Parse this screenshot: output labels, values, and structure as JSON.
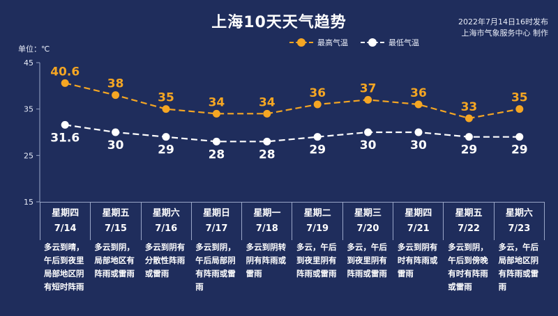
{
  "header": {
    "title": "上海10天天气趋势",
    "publish_time": "2022年7月14日16时发布",
    "publisher": "上海市气象服务中心 制作",
    "unit_label": "单位：℃"
  },
  "colors": {
    "background": "#1f2d5c",
    "high": "#f5a623",
    "low": "#ffffff"
  },
  "chart_data": {
    "type": "line",
    "title": "上海10天天气趋势",
    "ylabel": "单位：℃",
    "ylim": [
      15,
      45
    ],
    "yticks": [
      "15",
      "25",
      "35",
      "45"
    ],
    "categories": [
      "7/14",
      "7/15",
      "7/16",
      "7/17",
      "7/18",
      "7/19",
      "7/20",
      "7/21",
      "7/22",
      "7/23"
    ],
    "series": [
      {
        "name": "最高气温",
        "values": [
          40.6,
          38,
          35,
          34,
          34,
          36,
          37,
          36,
          33,
          35
        ],
        "labels": [
          "40.6",
          "38",
          "35",
          "34",
          "34",
          "36",
          "37",
          "36",
          "33",
          "35"
        ]
      },
      {
        "name": "最低气温",
        "values": [
          31.6,
          30,
          29,
          28,
          28,
          29,
          30,
          30,
          29,
          29
        ],
        "labels": [
          "31.6",
          "30",
          "29",
          "28",
          "28",
          "29",
          "30",
          "30",
          "29",
          "29"
        ]
      }
    ],
    "legend": "top-right"
  },
  "days": [
    {
      "weekday": "星期四",
      "date": "7/14",
      "desc": "多云到晴，午后到夜里局部地区阴有短时阵雨"
    },
    {
      "weekday": "星期五",
      "date": "7/15",
      "desc": "多云到阴，局部地区有阵雨或雷雨"
    },
    {
      "weekday": "星期六",
      "date": "7/16",
      "desc": "多云到阴有分散性阵雨或雷雨"
    },
    {
      "weekday": "星期日",
      "date": "7/17",
      "desc": "多云到阴，午后局部阴有阵雨或雷雨"
    },
    {
      "weekday": "星期一",
      "date": "7/18",
      "desc": "多云到阴转阴有阵雨或雷雨"
    },
    {
      "weekday": "星期二",
      "date": "7/19",
      "desc": "多云，午后到夜里阴有阵雨或雷雨"
    },
    {
      "weekday": "星期三",
      "date": "7/20",
      "desc": "多云，午后到夜里阴有阵雨或雷雨"
    },
    {
      "weekday": "星期四",
      "date": "7/21",
      "desc": "多云到阴有时有阵雨或雷雨"
    },
    {
      "weekday": "星期五",
      "date": "7/22",
      "desc": "多云到阴，午后到傍晚有时有阵雨或雷雨"
    },
    {
      "weekday": "星期六",
      "date": "7/23",
      "desc": "多云，午后局部地区阴有阵雨或雷雨"
    }
  ]
}
